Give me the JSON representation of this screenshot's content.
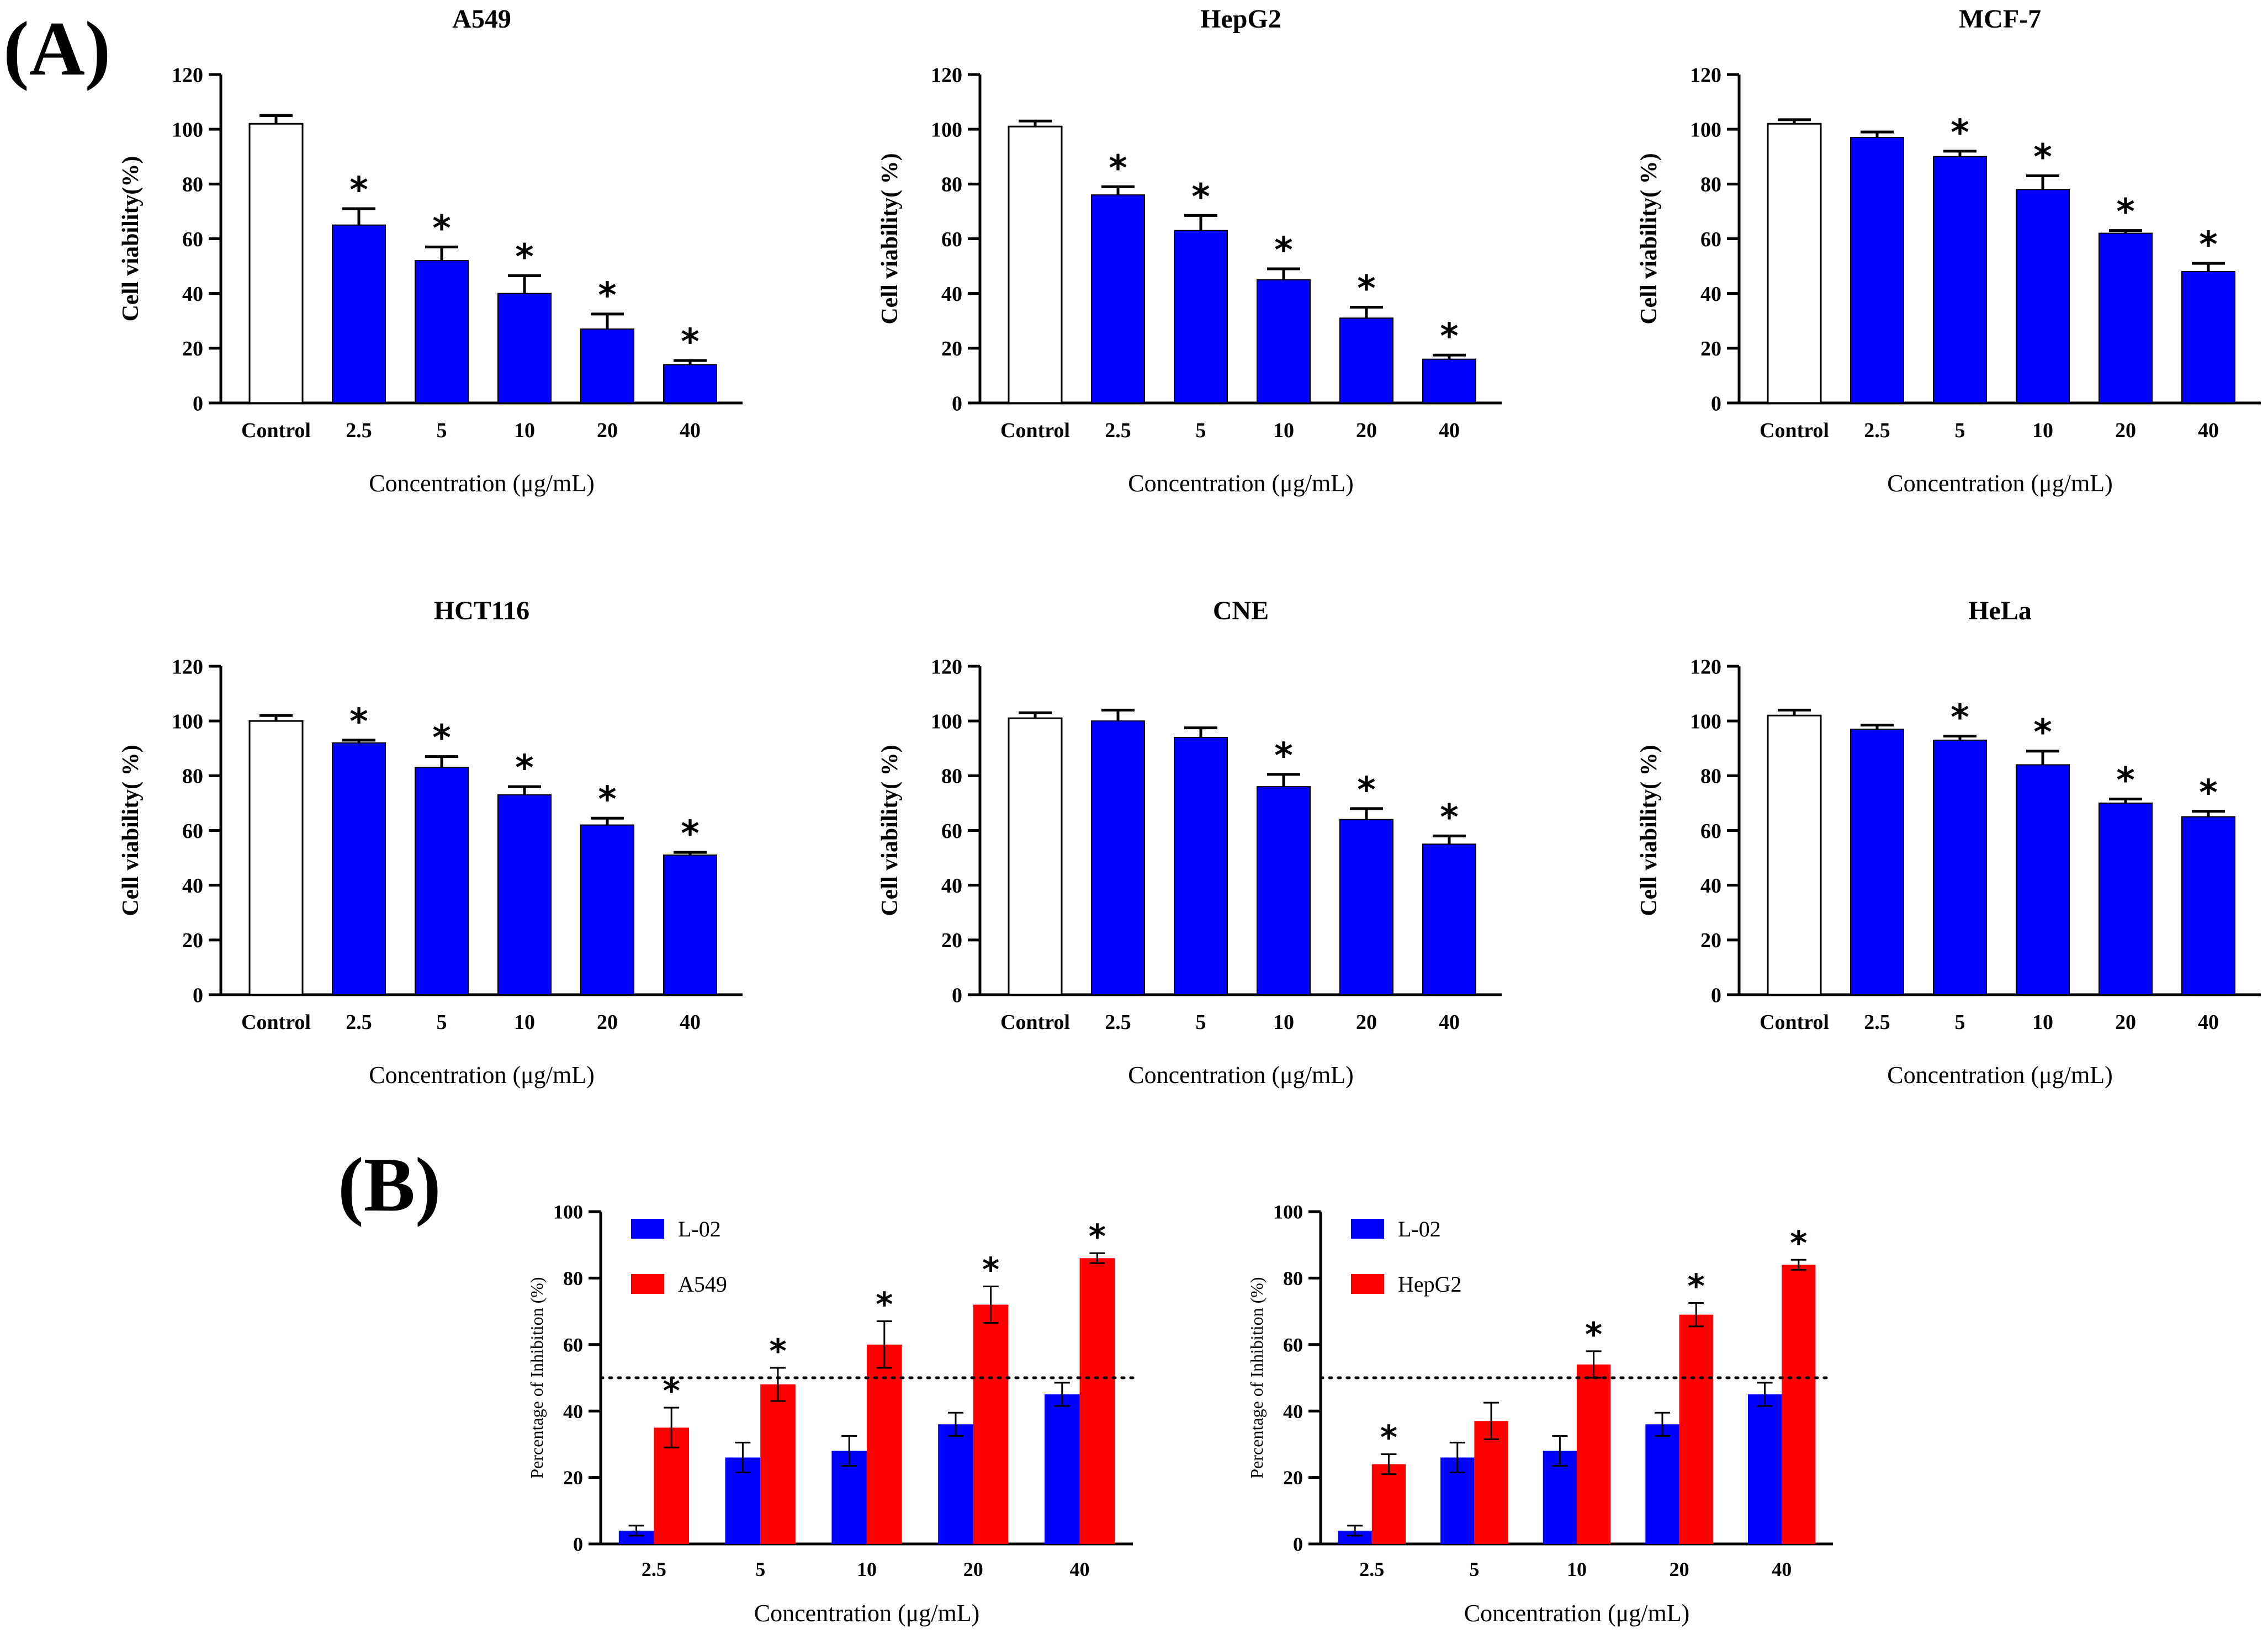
{
  "panels": {
    "a_label": "(A)",
    "b_label": "(B)"
  },
  "colors": {
    "bar_blue": "#0000ff",
    "bar_red": "#ff0000",
    "control_fill": "#ffffff",
    "axis": "#000000"
  },
  "chart_data": [
    {
      "type": "bar",
      "panel": "A",
      "title": "A549",
      "categories": [
        "Control",
        "2.5",
        "5",
        "10",
        "20",
        "40"
      ],
      "values": [
        102,
        65,
        52,
        40,
        27,
        14
      ],
      "errors": [
        3,
        6,
        5,
        6.5,
        5.5,
        1.5
      ],
      "significant": [
        false,
        true,
        true,
        true,
        true,
        true
      ],
      "xlabel": "Concentration (μg/mL)",
      "ylabel": "Cell viability(%)",
      "ylim": [
        0,
        120
      ],
      "yticks": [
        0,
        20,
        40,
        60,
        80,
        100,
        120
      ]
    },
    {
      "type": "bar",
      "panel": "A",
      "title": "HepG2",
      "categories": [
        "Control",
        "2.5",
        "5",
        "10",
        "20",
        "40"
      ],
      "values": [
        101,
        76,
        63,
        45,
        31,
        16
      ],
      "errors": [
        2,
        3,
        5.5,
        4,
        4,
        1.5
      ],
      "significant": [
        false,
        true,
        true,
        true,
        true,
        true
      ],
      "xlabel": "Concentration (μg/mL)",
      "ylabel": "Cell viability(  %)",
      "ylim": [
        0,
        120
      ],
      "yticks": [
        0,
        20,
        40,
        60,
        80,
        100,
        120
      ]
    },
    {
      "type": "bar",
      "panel": "A",
      "title": "MCF-7",
      "categories": [
        "Control",
        "2.5",
        "5",
        "10",
        "20",
        "40"
      ],
      "values": [
        102,
        97,
        90,
        78,
        62,
        48
      ],
      "errors": [
        1.5,
        2,
        2,
        5,
        1,
        3
      ],
      "significant": [
        false,
        false,
        true,
        true,
        true,
        true
      ],
      "xlabel": "Concentration (μg/mL)",
      "ylabel": "Cell viability(  %)",
      "ylim": [
        0,
        120
      ],
      "yticks": [
        0,
        20,
        40,
        60,
        80,
        100,
        120
      ]
    },
    {
      "type": "bar",
      "panel": "A",
      "title": "HCT116",
      "categories": [
        "Control",
        "2.5",
        "5",
        "10",
        "20",
        "40"
      ],
      "values": [
        100,
        92,
        83,
        73,
        62,
        51
      ],
      "errors": [
        2,
        1,
        4,
        3,
        2.5,
        1
      ],
      "significant": [
        false,
        true,
        true,
        true,
        true,
        true
      ],
      "xlabel": "Concentration (μg/mL)",
      "ylabel": "Cell viability(  %)",
      "ylim": [
        0,
        120
      ],
      "yticks": [
        0,
        20,
        40,
        60,
        80,
        100,
        120
      ]
    },
    {
      "type": "bar",
      "panel": "A",
      "title": "CNE",
      "categories": [
        "Control",
        "2.5",
        "5",
        "10",
        "20",
        "40"
      ],
      "values": [
        101,
        100,
        94,
        76,
        64,
        55
      ],
      "errors": [
        2,
        4,
        3.5,
        4.5,
        4,
        3
      ],
      "significant": [
        false,
        false,
        false,
        true,
        true,
        true
      ],
      "xlabel": "Concentration (μg/mL)",
      "ylabel": "Cell viability(  %)",
      "ylim": [
        0,
        120
      ],
      "yticks": [
        0,
        20,
        40,
        60,
        80,
        100,
        120
      ]
    },
    {
      "type": "bar",
      "panel": "A",
      "title": "HeLa",
      "categories": [
        "Control",
        "2.5",
        "5",
        "10",
        "20",
        "40"
      ],
      "values": [
        102,
        97,
        93,
        84,
        70,
        65
      ],
      "errors": [
        2,
        1.5,
        1.5,
        5,
        1.5,
        2
      ],
      "significant": [
        false,
        false,
        true,
        true,
        true,
        true
      ],
      "xlabel": "Concentration (μg/mL)",
      "ylabel": "Cell viability(  %)",
      "ylim": [
        0,
        120
      ],
      "yticks": [
        0,
        20,
        40,
        60,
        80,
        100,
        120
      ]
    },
    {
      "type": "bar",
      "panel": "B",
      "title": "",
      "categories": [
        "2.5",
        "5",
        "10",
        "20",
        "40"
      ],
      "series": [
        {
          "name": "L-02",
          "values": [
            4,
            26,
            28,
            36,
            45
          ],
          "errors": [
            1.5,
            4.5,
            4.5,
            3.5,
            3.5
          ],
          "significant": [
            false,
            false,
            false,
            false,
            false
          ]
        },
        {
          "name": "A549",
          "values": [
            35,
            48,
            60,
            72,
            86
          ],
          "errors": [
            6,
            5,
            7,
            5.5,
            1.5
          ],
          "significant": [
            true,
            true,
            true,
            true,
            true
          ]
        }
      ],
      "reference_line": 50,
      "xlabel": "Concentration (μg/mL)",
      "ylabel": "Percentage of Inhibition (%)",
      "ylim": [
        0,
        100
      ],
      "yticks": [
        0,
        20,
        40,
        60,
        80,
        100
      ]
    },
    {
      "type": "bar",
      "panel": "B",
      "title": "",
      "categories": [
        "2.5",
        "5",
        "10",
        "20",
        "40"
      ],
      "series": [
        {
          "name": "L-02",
          "values": [
            4,
            26,
            28,
            36,
            45
          ],
          "errors": [
            1.5,
            4.5,
            4.5,
            3.5,
            3.5
          ],
          "significant": [
            false,
            false,
            false,
            false,
            false
          ]
        },
        {
          "name": "HepG2",
          "values": [
            24,
            37,
            54,
            69,
            84
          ],
          "errors": [
            3,
            5.5,
            4,
            3.5,
            1.5
          ],
          "significant": [
            true,
            false,
            true,
            true,
            true
          ]
        }
      ],
      "reference_line": 50,
      "xlabel": "Concentration (μg/mL)",
      "ylabel": "Percentage of Inhibition (%)",
      "ylim": [
        0,
        100
      ],
      "yticks": [
        0,
        20,
        40,
        60,
        80,
        100
      ]
    }
  ]
}
